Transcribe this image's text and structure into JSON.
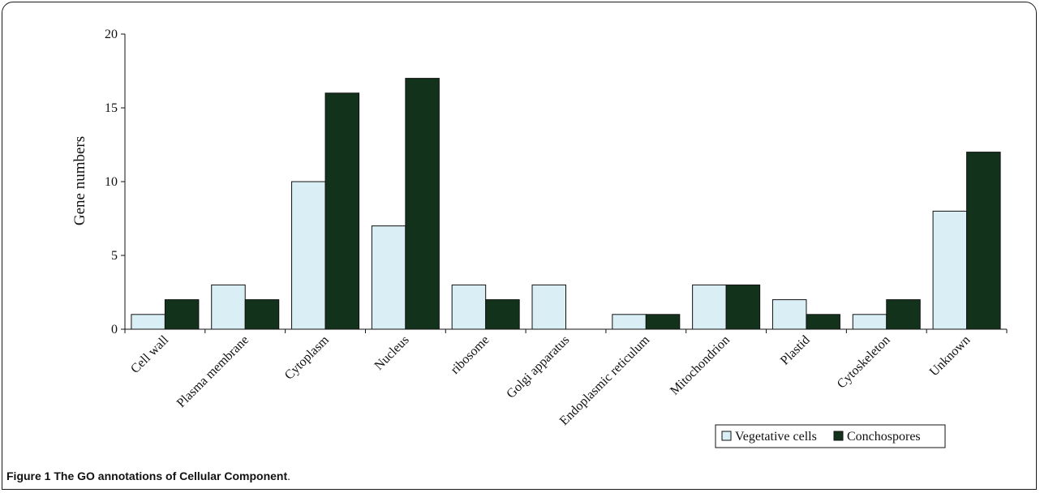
{
  "figure": {
    "label": "Figure 1",
    "title": "The GO annotations of Cellular Component",
    "end": "."
  },
  "chart_data": {
    "type": "bar",
    "title": "",
    "xlabel": "",
    "ylabel": "Gene numbers",
    "ylim": [
      0,
      20
    ],
    "yticks": [
      0,
      5,
      10,
      15,
      20
    ],
    "grid": false,
    "legend_position": "bottom-right",
    "categories": [
      "Cell wall",
      "Plasma membrane",
      "Cytoplasm",
      "Nucleus",
      "ribosome",
      "Golgi apparatus",
      "Endoplasmic reticulum",
      "Mitochondrion",
      "Plastid",
      "Cytoskeleton",
      "Unknown"
    ],
    "series": [
      {
        "name": "Vegetative cells",
        "color": "#d9eef5",
        "values": [
          1,
          3,
          10,
          7,
          3,
          3,
          1,
          3,
          2,
          1,
          8
        ]
      },
      {
        "name": "Conchospores",
        "color": "#12321b",
        "values": [
          2,
          2,
          16,
          17,
          2,
          0,
          1,
          3,
          1,
          2,
          12
        ]
      }
    ]
  }
}
